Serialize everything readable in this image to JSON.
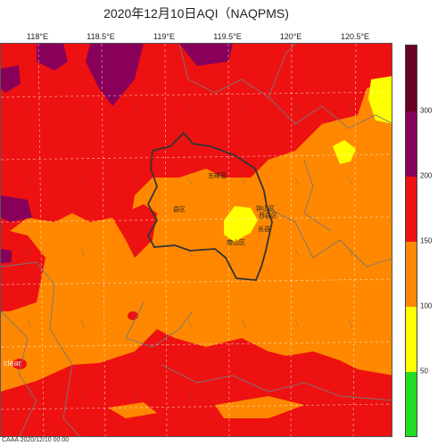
{
  "header": {
    "title": "2020年12月10日AQI（NAQPMS)"
  },
  "map": {
    "lon_ticks": [
      "118°E",
      "118.5°E",
      "119°E",
      "119.5°E",
      "120°E",
      "120.5°E"
    ],
    "cities": [
      "五峰县",
      "县区",
      "钟山区",
      "西县区",
      "长县",
      "南山区"
    ],
    "logo": "clear",
    "footer": "CAAA    2020/12/10 00:00"
  },
  "colorbar": {
    "ticks": [
      "50",
      "100",
      "150",
      "200",
      "300"
    ],
    "colors": {
      "good": "#22dd22",
      "moderate": "#ffff00",
      "usg": "#ff8800",
      "unhealthy": "#ee1111",
      "very_unhealthy": "#88005a",
      "hazardous": "#6a0022"
    }
  }
}
